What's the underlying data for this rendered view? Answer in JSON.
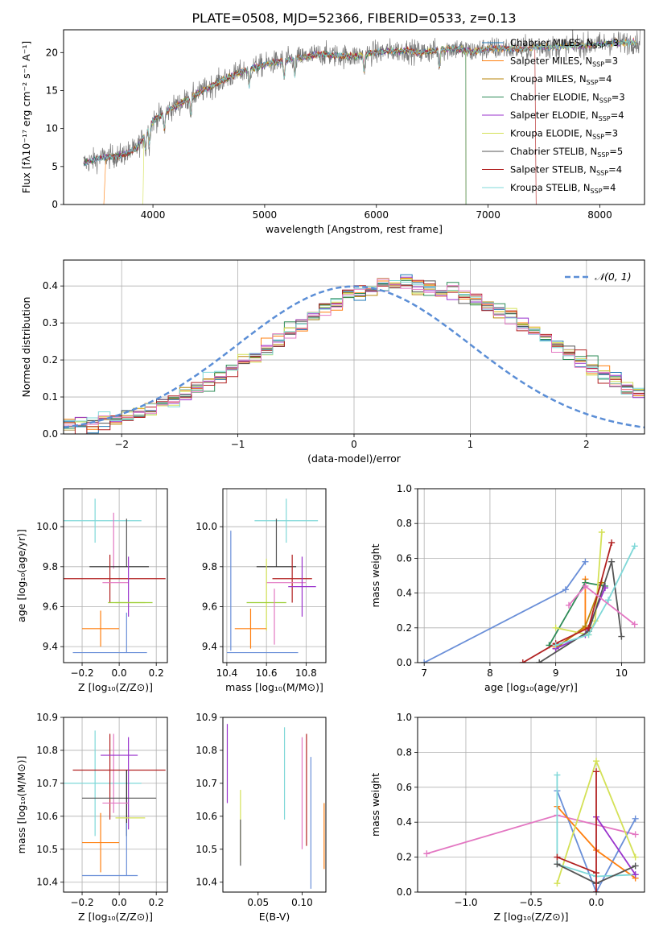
{
  "figure_title": "PLATE=0508, MJD=52366, FIBERID=0533, z=0.13",
  "colors": {
    "Chabrier MILES": "#1f77b4",
    "Salpeter MILES": "#ff7f0e",
    "Kroupa MILES": "#b8860b",
    "Chabrier ELODIE": "#2e8b57",
    "Salpeter ELODIE": "#9932cc",
    "Kroupa ELODIE": "#d4e157",
    "Chabrier STELIB": "#555555",
    "Salpeter STELIB": "#b22222",
    "Kroupa STELIB": "#7fd8d8",
    "normal": "#5b8ed6",
    "pink": "#e377c2",
    "olive": "#9acd32",
    "steel": "#6a8fd8"
  },
  "chart_data": [
    {
      "id": "spectrum",
      "type": "line",
      "xlabel": "wavelength [Angstrom, rest frame]",
      "ylabel": "Flux [fλ10⁻¹⁷ erg cm⁻² s⁻¹ A⁻¹]",
      "xlim": [
        3200,
        8400
      ],
      "ylim": [
        0,
        23
      ],
      "xticks": [
        4000,
        5000,
        6000,
        7000,
        8000
      ],
      "yticks": [
        0,
        5,
        10,
        15,
        20
      ],
      "grid": false,
      "legend_position": "top-right",
      "data_x": [
        3400,
        3550,
        3700,
        3850,
        4000,
        4150,
        4300,
        4450,
        4600,
        4750,
        4900,
        5050,
        5200,
        5350,
        5500,
        5650,
        5800,
        5950,
        6100,
        6250,
        6400,
        6550,
        6700,
        6850,
        7000,
        7150,
        7300,
        7450,
        7600,
        7750,
        7900,
        8050,
        8200,
        8350
      ],
      "data_y": [
        5.5,
        6.2,
        6.4,
        7.3,
        11.0,
        12.5,
        13.8,
        15.0,
        16.2,
        17.2,
        18.0,
        18.6,
        19.0,
        19.4,
        19.8,
        19.6,
        19.5,
        19.9,
        20.2,
        20.3,
        20.0,
        20.3,
        20.6,
        20.1,
        20.5,
        20.6,
        20.4,
        20.8,
        20.7,
        20.9,
        21.0,
        21.2,
        21.3,
        21.4
      ],
      "series": [
        {
          "name": "Chabrier MILES, N_SSP=3",
          "label_main": "Chabrier MILES, N",
          "label_sub": "SSP",
          "label_tail": "=3"
        },
        {
          "name": "Salpeter MILES, N_SSP=3",
          "label_main": "Salpeter MILES, N",
          "label_sub": "SSP",
          "label_tail": "=3"
        },
        {
          "name": "Kroupa MILES, N_SSP=4",
          "label_main": "Kroupa MILES, N",
          "label_sub": "SSP",
          "label_tail": "=4"
        },
        {
          "name": "Chabrier ELODIE, N_SSP=3",
          "label_main": "Chabrier ELODIE, N",
          "label_sub": "SSP",
          "label_tail": "=3"
        },
        {
          "name": "Salpeter ELODIE, N_SSP=4",
          "label_main": "Salpeter ELODIE, N",
          "label_sub": "SSP",
          "label_tail": "=4"
        },
        {
          "name": "Kroupa ELODIE, N_SSP=3",
          "label_main": "Kroupa ELODIE, N",
          "label_sub": "SSP",
          "label_tail": "=3"
        },
        {
          "name": "Chabrier STELIB, N_SSP=5",
          "label_main": "Chabrier STELIB, N",
          "label_sub": "SSP",
          "label_tail": "=5"
        },
        {
          "name": "Salpeter STELIB, N_SSP=4",
          "label_main": "Salpeter STELIB, N",
          "label_sub": "SSP",
          "label_tail": "=4"
        },
        {
          "name": "Kroupa STELIB, N_SSP=4",
          "label_main": "Kroupa STELIB, N",
          "label_sub": "SSP",
          "label_tail": "=4"
        }
      ]
    },
    {
      "id": "residuals",
      "type": "histogram",
      "xlabel": "(data-model)/error",
      "ylabel": "Normed distribution",
      "xlim": [
        -2.5,
        2.5
      ],
      "ylim": [
        0,
        0.47
      ],
      "xticks": [
        -2,
        -1,
        0,
        1,
        2
      ],
      "yticks": [
        0.0,
        0.1,
        0.2,
        0.3,
        0.4
      ],
      "grid": true,
      "legend_position": "top-right",
      "legend_label": "𝒩(0, 1)",
      "bin_width": 0.1,
      "bin_start": -2.5,
      "reference_density": [
        0.018,
        0.022,
        0.027,
        0.033,
        0.04,
        0.048,
        0.057,
        0.068,
        0.079,
        0.092,
        0.107,
        0.122,
        0.139,
        0.156,
        0.175,
        0.194,
        0.213,
        0.233,
        0.253,
        0.273,
        0.292,
        0.31,
        0.327,
        0.343,
        0.357,
        0.37,
        0.381,
        0.39,
        0.396,
        0.4,
        0.4,
        0.398,
        0.394,
        0.386,
        0.376,
        0.364,
        0.35,
        0.334,
        0.317,
        0.298,
        0.279,
        0.259,
        0.239,
        0.219,
        0.199,
        0.18,
        0.161,
        0.143,
        0.127,
        0.111,
        0.097
      ]
    },
    {
      "id": "age-vs-Z",
      "type": "errorbar",
      "xlabel": "Z [log₁₀(Z/Z⊙)]",
      "ylabel": "age  [log₁₀(age/yr)]",
      "xlim": [
        -0.3,
        0.26
      ],
      "ylim": [
        9.32,
        10.19
      ],
      "xticks": [
        -0.2,
        0.0,
        0.2
      ],
      "yticks": [
        9.4,
        9.6,
        9.8,
        10.0
      ],
      "grid": true,
      "points": [
        {
          "x": -0.13,
          "y": 10.03,
          "xerr": 0.25,
          "yerr": 0.11,
          "color": "#7fd8d8"
        },
        {
          "x": -0.03,
          "y": 9.93,
          "xerr": 0.0,
          "yerr": 0.14,
          "color": "#e377c2"
        },
        {
          "x": 0.04,
          "y": 9.92,
          "xerr": 0.0,
          "yerr": 0.12,
          "color": "#555555"
        },
        {
          "x": 0.0,
          "y": 9.8,
          "xerr": 0.16,
          "yerr": 0.0,
          "color": "#222222"
        },
        {
          "x": -0.05,
          "y": 9.74,
          "xerr": 0.3,
          "yerr": 0.12,
          "color": "#b22222"
        },
        {
          "x": -0.02,
          "y": 9.72,
          "xerr": 0.07,
          "yerr": 0.0,
          "color": "#e377c2"
        },
        {
          "x": 0.05,
          "y": 9.7,
          "xerr": 0.0,
          "yerr": 0.15,
          "color": "#9932cc"
        },
        {
          "x": 0.06,
          "y": 9.62,
          "xerr": 0.08,
          "yerr": 0.0,
          "color": "#d4e157"
        },
        {
          "x": 0.06,
          "y": 9.62,
          "xerr": 0.12,
          "yerr": 0.0,
          "color": "#9acd32"
        },
        {
          "x": -0.1,
          "y": 9.49,
          "xerr": 0.1,
          "yerr": 0.09,
          "color": "#ff7f0e"
        },
        {
          "x": 0.04,
          "y": 9.47,
          "xerr": 0.0,
          "yerr": 0.1,
          "color": "#6a8fd8"
        },
        {
          "x": -0.05,
          "y": 9.37,
          "xerr": 0.2,
          "yerr": 0.0,
          "color": "#6a8fd8"
        }
      ]
    },
    {
      "id": "age-vs-mass",
      "type": "errorbar",
      "xlabel": "mass [log₁₀(M/M⊙)]",
      "ylabel": "",
      "xlim": [
        10.38,
        10.9
      ],
      "ylim": [
        9.32,
        10.19
      ],
      "xticks": [
        10.4,
        10.6,
        10.8
      ],
      "yticks": [
        9.4,
        9.6,
        9.8,
        10.0
      ],
      "grid": true,
      "points": [
        {
          "x": 10.7,
          "y": 10.03,
          "xerr": 0.16,
          "yerr": 0.11,
          "color": "#7fd8d8"
        },
        {
          "x": 10.65,
          "y": 9.92,
          "xerr": 0.0,
          "yerr": 0.12,
          "color": "#555555"
        },
        {
          "x": 10.65,
          "y": 9.8,
          "xerr": 0.1,
          "yerr": 0.0,
          "color": "#222222"
        },
        {
          "x": 10.73,
          "y": 9.74,
          "xerr": 0.1,
          "yerr": 0.12,
          "color": "#b22222"
        },
        {
          "x": 10.7,
          "y": 9.72,
          "xerr": 0.1,
          "yerr": 0.0,
          "color": "#e377c2"
        },
        {
          "x": 10.78,
          "y": 9.7,
          "xerr": 0.07,
          "yerr": 0.15,
          "color": "#9932cc"
        },
        {
          "x": 10.6,
          "y": 9.66,
          "xerr": 0.0,
          "yerr": 0.18,
          "color": "#d4e157"
        },
        {
          "x": 10.6,
          "y": 9.62,
          "xerr": 0.1,
          "yerr": 0.0,
          "color": "#9acd32"
        },
        {
          "x": 10.52,
          "y": 9.49,
          "xerr": 0.08,
          "yerr": 0.1,
          "color": "#ff7f0e"
        },
        {
          "x": 10.42,
          "y": 9.68,
          "xerr": 0.0,
          "yerr": 0.3,
          "color": "#6a8fd8"
        },
        {
          "x": 10.64,
          "y": 9.55,
          "xerr": 0.0,
          "yerr": 0.14,
          "color": "#e377c2"
        },
        {
          "x": 10.58,
          "y": 9.37,
          "xerr": 0.18,
          "yerr": 0.0,
          "color": "#6a8fd8"
        }
      ]
    },
    {
      "id": "massweight-vs-age",
      "type": "line",
      "xlabel": "age  [log₁₀(age/yr)]",
      "ylabel": "mass weight",
      "xlim": [
        6.9,
        10.35
      ],
      "ylim": [
        0,
        1
      ],
      "xticks": [
        7,
        8,
        9,
        10
      ],
      "yticks": [
        0.0,
        0.2,
        0.4,
        0.6,
        0.8,
        1.0
      ],
      "grid": true,
      "series": [
        {
          "color": "#6a8fd8",
          "x": [
            7.0,
            9.15,
            9.45
          ],
          "y": [
            0.0,
            0.42,
            0.58
          ]
        },
        {
          "color": "#ff7f0e",
          "x": [
            9.0,
            9.45,
            9.45
          ],
          "y": [
            0.09,
            0.2,
            0.48
          ]
        },
        {
          "color": "#b8860b",
          "x": [
            9.0,
            9.45,
            9.7
          ],
          "y": [
            0.08,
            0.21,
            0.46
          ]
        },
        {
          "color": "#2e8b57",
          "x": [
            8.9,
            9.45,
            9.75
          ],
          "y": [
            0.1,
            0.46,
            0.44
          ]
        },
        {
          "color": "#9932cc",
          "x": [
            9.0,
            9.45,
            9.75
          ],
          "y": [
            0.08,
            0.16,
            0.43
          ]
        },
        {
          "color": "#d4e157",
          "x": [
            9.0,
            9.5,
            9.6,
            9.7
          ],
          "y": [
            0.2,
            0.16,
            0.24,
            0.75
          ]
        },
        {
          "color": "#555555",
          "x": [
            8.75,
            9.5,
            9.85,
            10.0
          ],
          "y": [
            0.0,
            0.18,
            0.58,
            0.15
          ]
        },
        {
          "color": "#b22222",
          "x": [
            8.5,
            9.0,
            9.5,
            9.85
          ],
          "y": [
            0.0,
            0.11,
            0.2,
            0.69
          ]
        },
        {
          "color": "#7fd8d8",
          "x": [
            9.0,
            9.5,
            9.8,
            10.2
          ],
          "y": [
            0.1,
            0.16,
            0.36,
            0.67
          ]
        },
        {
          "color": "#e377c2",
          "x": [
            9.2,
            9.45,
            10.2
          ],
          "y": [
            0.33,
            0.44,
            0.22
          ]
        }
      ]
    },
    {
      "id": "mass-vs-Z",
      "type": "errorbar",
      "xlabel": "Z [log₁₀(Z/Z⊙)]",
      "ylabel": "mass [log₁₀(M/M⊙)]",
      "xlim": [
        -0.3,
        0.26
      ],
      "ylim": [
        10.37,
        10.9
      ],
      "xticks": [
        -0.2,
        0.0,
        0.2
      ],
      "yticks": [
        10.4,
        10.5,
        10.6,
        10.7,
        10.8,
        10.9
      ],
      "grid": true,
      "points": [
        {
          "x": -0.13,
          "y": 10.7,
          "xerr": 0.25,
          "yerr": 0.16,
          "color": "#7fd8d8"
        },
        {
          "x": -0.03,
          "y": 10.73,
          "xerr": 0.0,
          "yerr": 0.12,
          "color": "#e377c2"
        },
        {
          "x": 0.0,
          "y": 10.74,
          "xerr": 0.25,
          "yerr": 0.0,
          "color": "#b22222"
        },
        {
          "x": -0.05,
          "y": 10.72,
          "xerr": 0.0,
          "yerr": 0.13,
          "color": "#b22222"
        },
        {
          "x": 0.0,
          "y": 10.785,
          "xerr": 0.1,
          "yerr": 0.0,
          "color": "#9932cc"
        },
        {
          "x": 0.05,
          "y": 10.7,
          "xerr": 0.0,
          "yerr": 0.14,
          "color": "#9932cc"
        },
        {
          "x": 0.0,
          "y": 10.655,
          "xerr": 0.2,
          "yerr": 0.0,
          "color": "#555555"
        },
        {
          "x": 0.04,
          "y": 10.64,
          "xerr": 0.0,
          "yerr": 0.1,
          "color": "#222222"
        },
        {
          "x": -0.02,
          "y": 10.64,
          "xerr": 0.07,
          "yerr": 0.0,
          "color": "#e377c2"
        },
        {
          "x": 0.06,
          "y": 10.595,
          "xerr": 0.08,
          "yerr": 0.0,
          "color": "#d4e157"
        },
        {
          "x": -0.1,
          "y": 10.52,
          "xerr": 0.1,
          "yerr": 0.09,
          "color": "#ff7f0e"
        },
        {
          "x": 0.04,
          "y": 10.5,
          "xerr": 0.0,
          "yerr": 0.08,
          "color": "#6a8fd8"
        },
        {
          "x": -0.05,
          "y": 10.42,
          "xerr": 0.15,
          "yerr": 0.0,
          "color": "#6a8fd8"
        }
      ]
    },
    {
      "id": "mass-vs-ebv",
      "type": "errorbar",
      "xlabel": "E(B-V)",
      "ylabel": "",
      "xlim": [
        0.01,
        0.127
      ],
      "ylim": [
        10.37,
        10.9
      ],
      "xticks": [
        0.05,
        0.1
      ],
      "yticks": [
        10.4,
        10.5,
        10.6,
        10.7,
        10.8,
        10.9
      ],
      "grid": false,
      "points": [
        {
          "x": 0.015,
          "y": 10.76,
          "xerr": 0.0,
          "yerr": 0.12,
          "color": "#9932cc"
        },
        {
          "x": 0.03,
          "y": 10.57,
          "xerr": 0.0,
          "yerr": 0.11,
          "color": "#d4e157"
        },
        {
          "x": 0.03,
          "y": 10.52,
          "xerr": 0.0,
          "yerr": 0.07,
          "color": "#555555"
        },
        {
          "x": 0.08,
          "y": 10.73,
          "xerr": 0.0,
          "yerr": 0.14,
          "color": "#7fd8d8"
        },
        {
          "x": 0.1,
          "y": 10.67,
          "xerr": 0.0,
          "yerr": 0.17,
          "color": "#e377c2"
        },
        {
          "x": 0.105,
          "y": 10.68,
          "xerr": 0.0,
          "yerr": 0.17,
          "color": "#b22222"
        },
        {
          "x": 0.11,
          "y": 10.58,
          "xerr": 0.0,
          "yerr": 0.2,
          "color": "#6a8fd8"
        },
        {
          "x": 0.125,
          "y": 10.54,
          "xerr": 0.0,
          "yerr": 0.1,
          "color": "#ff7f0e"
        }
      ]
    },
    {
      "id": "massweight-vs-Z",
      "type": "line",
      "xlabel": "Z [log₁₀(Z/Z⊙)]",
      "ylabel": "mass weight",
      "xlim": [
        -1.37,
        0.37
      ],
      "ylim": [
        0,
        1
      ],
      "xticks": [
        -1.0,
        -0.5,
        0.0
      ],
      "yticks": [
        0.0,
        0.2,
        0.4,
        0.6,
        0.8,
        1.0
      ],
      "grid": true,
      "series": [
        {
          "color": "#e377c2",
          "x": [
            -1.3,
            -0.3,
            0.3
          ],
          "y": [
            0.22,
            0.44,
            0.33
          ]
        },
        {
          "color": "#6a8fd8",
          "x": [
            -0.3,
            0.0,
            0.3
          ],
          "y": [
            0.58,
            0.0,
            0.42
          ]
        },
        {
          "color": "#ff7f0e",
          "x": [
            -0.3,
            0.0,
            0.3
          ],
          "y": [
            0.49,
            0.24,
            0.08
          ]
        },
        {
          "color": "#d4e157",
          "x": [
            -0.3,
            0.0,
            0.3
          ],
          "y": [
            0.05,
            0.75,
            0.2
          ]
        },
        {
          "color": "#7fd8d8",
          "x": [
            -0.3,
            -0.3,
            0.0,
            0.3
          ],
          "y": [
            0.67,
            0.16,
            0.09,
            0.1
          ]
        },
        {
          "color": "#9932cc",
          "x": [
            0.0,
            0.3
          ],
          "y": [
            0.43,
            0.1
          ]
        },
        {
          "color": "#555555",
          "x": [
            -0.3,
            0.0,
            0.3
          ],
          "y": [
            0.16,
            0.05,
            0.15
          ]
        },
        {
          "color": "#b22222",
          "x": [
            -0.3,
            0.0,
            0.0,
            0.0
          ],
          "y": [
            0.2,
            0.11,
            0.0,
            0.69
          ]
        }
      ]
    }
  ]
}
